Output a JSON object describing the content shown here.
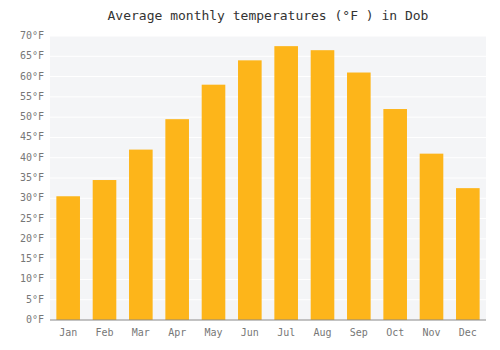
{
  "chart_data": {
    "type": "bar",
    "title": "Average monthly temperatures (°F ) in Dob",
    "categories": [
      "Jan",
      "Feb",
      "Mar",
      "Apr",
      "May",
      "Jun",
      "Jul",
      "Aug",
      "Sep",
      "Oct",
      "Nov",
      "Dec"
    ],
    "values": [
      30.5,
      34.5,
      42.0,
      49.5,
      58.0,
      64.0,
      67.5,
      66.5,
      61.0,
      52.0,
      41.0,
      32.5
    ],
    "color": "#FDB51A",
    "ylim": [
      0,
      70
    ],
    "yticks": [
      {
        "value": 0,
        "label": "0°F"
      },
      {
        "value": 5,
        "label": "5°F"
      },
      {
        "value": 10,
        "label": "10°F"
      },
      {
        "value": 15,
        "label": "15°F"
      },
      {
        "value": 20,
        "label": "20°F"
      },
      {
        "value": 25,
        "label": "25°F"
      },
      {
        "value": 30,
        "label": "30°F"
      },
      {
        "value": 35,
        "label": "35°F"
      },
      {
        "value": 40,
        "label": "40°F"
      },
      {
        "value": 45,
        "label": "45°F"
      },
      {
        "value": 50,
        "label": "50°F"
      },
      {
        "value": 55,
        "label": "55°F"
      },
      {
        "value": 60,
        "label": "60°F"
      },
      {
        "value": 65,
        "label": "65°F"
      },
      {
        "value": 70,
        "label": "70°F"
      }
    ],
    "grid": true
  }
}
